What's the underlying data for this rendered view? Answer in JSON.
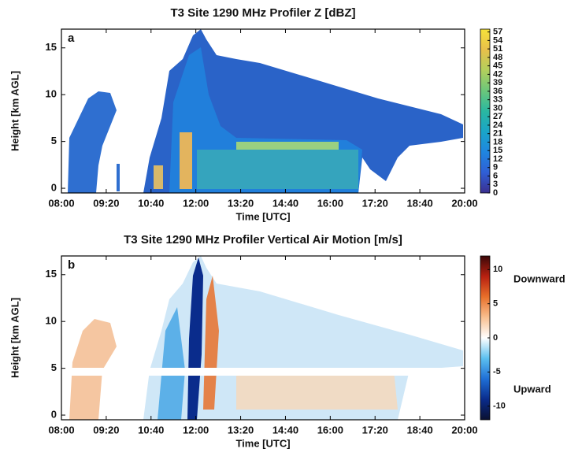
{
  "chart_data": [
    {
      "type": "heatmap",
      "title": "T3 Site 1290 MHz Profiler Z [dBZ]",
      "panel_label": "a",
      "x_label": "Time [UTC]",
      "y_label": "Height [km AGL]",
      "xlim": [
        480,
        1200
      ],
      "xticks": [
        {
          "value": 480,
          "label": "08:00"
        },
        {
          "value": 560,
          "label": "09:20"
        },
        {
          "value": 640,
          "label": "10:40"
        },
        {
          "value": 720,
          "label": "12:00"
        },
        {
          "value": 800,
          "label": "13:20"
        },
        {
          "value": 880,
          "label": "14:40"
        },
        {
          "value": 960,
          "label": "16:00"
        },
        {
          "value": 1040,
          "label": "17:20"
        },
        {
          "value": 1120,
          "label": "18:40"
        },
        {
          "value": 1200,
          "label": "20:00"
        }
      ],
      "ylim": [
        -0.5,
        17
      ],
      "yticks": [
        0,
        5,
        10,
        15
      ],
      "clim": [
        0,
        58
      ],
      "cticks": [
        0,
        3,
        6,
        9,
        12,
        15,
        18,
        21,
        24,
        27,
        30,
        33,
        36,
        39,
        42,
        45,
        48,
        51,
        54,
        57
      ],
      "colormap": [
        "#3b2f8f",
        "#2f5fd6",
        "#1f86e0",
        "#1aa5c8",
        "#2ab8a0",
        "#6cc77a",
        "#b3cf5c",
        "#e8c04a",
        "#f6e23a"
      ]
    },
    {
      "type": "heatmap",
      "title": "T3 Site 1290 MHz Profiler Vertical Air Motion [m/s]",
      "panel_label": "b",
      "x_label": "Time [UTC]",
      "y_label": "Height [km AGL]",
      "xlim": [
        480,
        1200
      ],
      "xticks": [
        {
          "value": 480,
          "label": "08:00"
        },
        {
          "value": 560,
          "label": "09:20"
        },
        {
          "value": 640,
          "label": "10:40"
        },
        {
          "value": 720,
          "label": "12:00"
        },
        {
          "value": 800,
          "label": "13:20"
        },
        {
          "value": 880,
          "label": "14:40"
        },
        {
          "value": 960,
          "label": "16:00"
        },
        {
          "value": 1040,
          "label": "17:20"
        },
        {
          "value": 1120,
          "label": "18:40"
        },
        {
          "value": 1200,
          "label": "20:00"
        }
      ],
      "ylim": [
        -0.5,
        17
      ],
      "yticks": [
        0,
        5,
        10,
        15
      ],
      "clim": [
        -12,
        12
      ],
      "cticks": [
        -10,
        -5,
        0,
        5,
        10
      ],
      "colormap": [
        "#0a1030",
        "#0a2c8c",
        "#1f6fd6",
        "#5cc0f0",
        "#ffffff",
        "#f8c090",
        "#e8702a",
        "#b82010",
        "#3a0808"
      ],
      "annotations": [
        "Downward",
        "Upward"
      ]
    }
  ]
}
